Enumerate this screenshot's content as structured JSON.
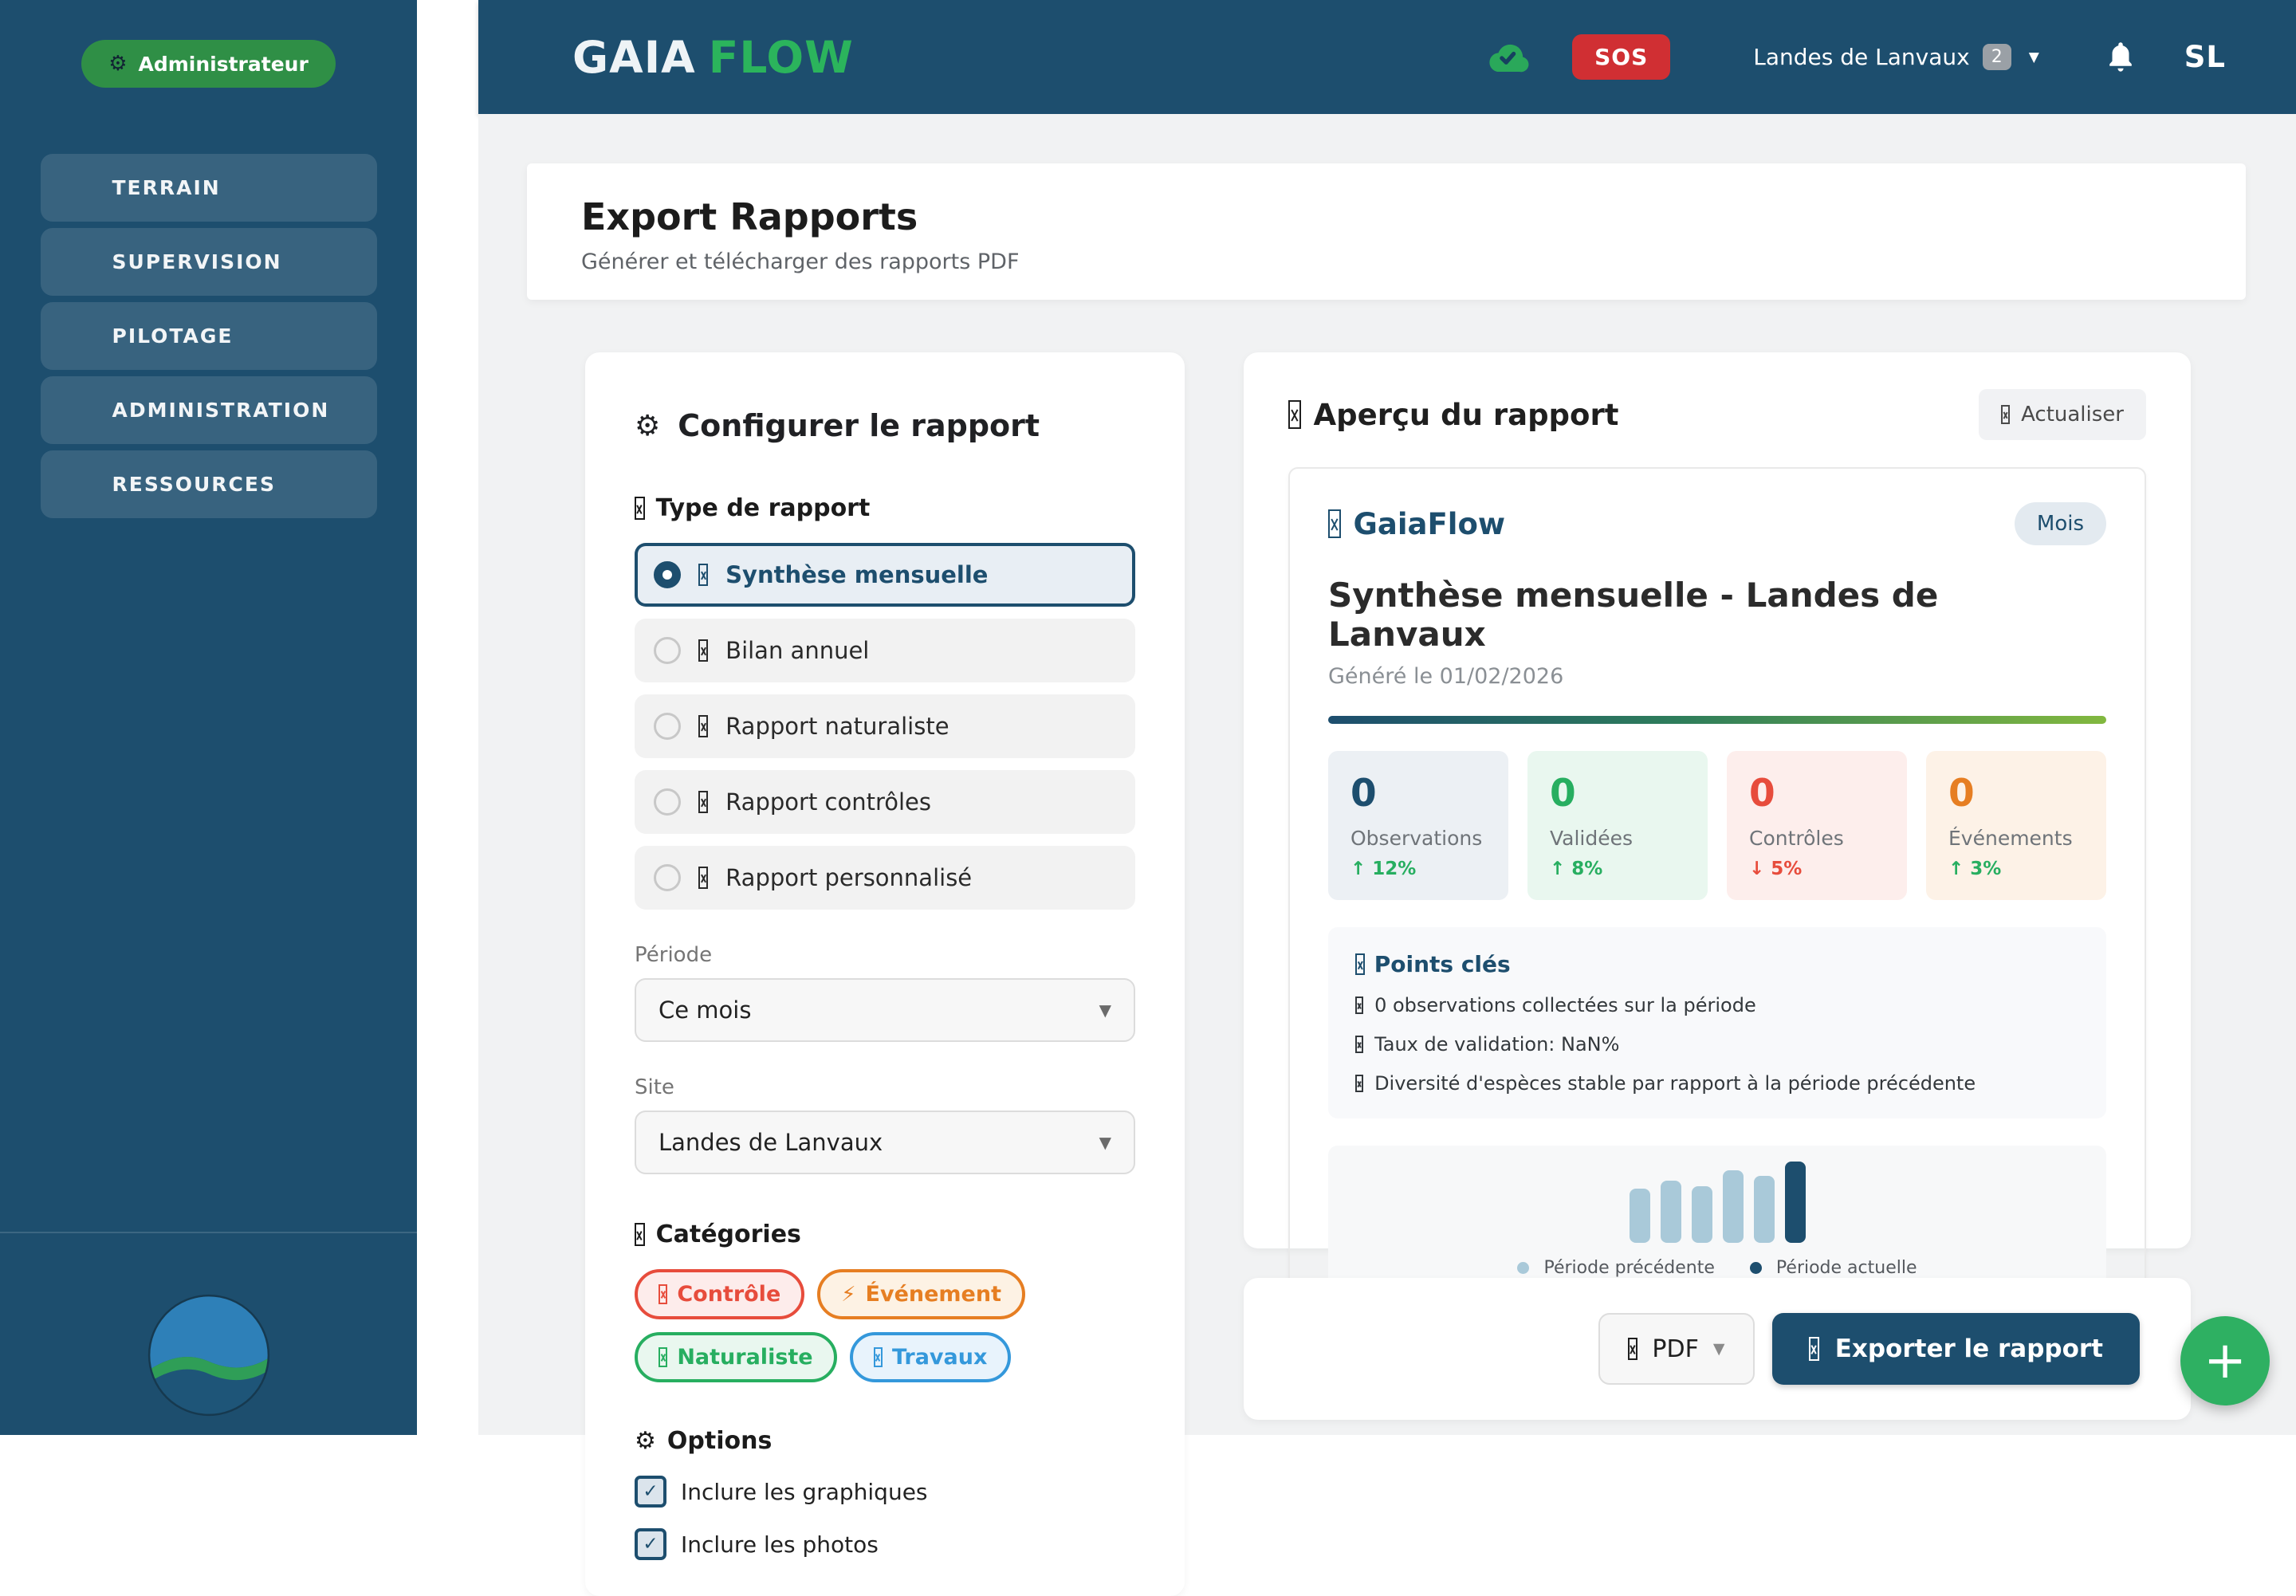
{
  "icons": {
    "gear": "⚙",
    "bolt": "⚡",
    "caret": "▼",
    "check": "✓",
    "plus": "+"
  },
  "sidebar": {
    "role_badge": "Administrateur",
    "items": [
      "TERRAIN",
      "SUPERVISION",
      "PILOTAGE",
      "ADMINISTRATION",
      "RESSOURCES"
    ]
  },
  "header": {
    "brand_primary": "GAIA",
    "brand_secondary": "FLOW",
    "sos_label": "SOS",
    "site_selector": {
      "label": "Landes de Lanvaux",
      "badge": "2"
    },
    "avatar_initials": "SL"
  },
  "page": {
    "title": "Export Rapports",
    "subtitle": "Générer et télécharger des rapports PDF"
  },
  "config": {
    "title": "Configurer le rapport",
    "type_label": "Type de rapport",
    "report_types": [
      {
        "label": "Synthèse mensuelle",
        "selected": true
      },
      {
        "label": "Bilan annuel",
        "selected": false
      },
      {
        "label": "Rapport naturaliste",
        "selected": false
      },
      {
        "label": "Rapport contrôles",
        "selected": false
      },
      {
        "label": "Rapport personnalisé",
        "selected": false
      }
    ],
    "periode_label": "Période",
    "periode_value": "Ce mois",
    "site_label": "Site",
    "site_value": "Landes de Lanvaux",
    "categories_label": "Catégories",
    "categories": [
      {
        "label": "Contrôle",
        "color": "#e74c3c"
      },
      {
        "label": "Événement",
        "color": "#e67e22"
      },
      {
        "label": "Naturaliste",
        "color": "#27ae60"
      },
      {
        "label": "Travaux",
        "color": "#3498db"
      }
    ],
    "options_label": "Options",
    "checkboxes": [
      {
        "label": "Inclure les graphiques",
        "checked": true
      },
      {
        "label": "Inclure les photos",
        "checked": true
      }
    ]
  },
  "preview": {
    "title": "Aperçu du rapport",
    "refresh_label": "Actualiser",
    "report": {
      "brand": "GaiaFlow",
      "badge": "Mois",
      "title": "Synthèse mensuelle - Landes de Lanvaux",
      "generated": "Généré le 01/02/2026",
      "stats": [
        {
          "value": "0",
          "label": "Observations",
          "trend": "↑ 12%",
          "trend_dir": "up"
        },
        {
          "value": "0",
          "label": "Validées",
          "trend": "↑ 8%",
          "trend_dir": "up"
        },
        {
          "value": "0",
          "label": "Contrôles",
          "trend": "↓ 5%",
          "trend_dir": "down"
        },
        {
          "value": "0",
          "label": "Événements",
          "trend": "↑ 3%",
          "trend_dir": "up"
        }
      ],
      "keypoints_title": "Points clés",
      "keypoints": [
        "0 observations collectées sur la période",
        "Taux de validation: NaN%",
        "Diversité d'espèces stable par rapport à la période précédente"
      ]
    },
    "chart_data": {
      "type": "bar",
      "title": "",
      "legend": [
        "Période précédente",
        "Période actuelle"
      ],
      "legend_position": "bottom",
      "axes_visible": false,
      "bars": [
        {
          "series": "Période précédente",
          "value": 68
        },
        {
          "series": "Période précédente",
          "value": 78
        },
        {
          "series": "Période précédente",
          "value": 71
        },
        {
          "series": "Période précédente",
          "value": 91
        },
        {
          "series": "Période précédente",
          "value": 84
        },
        {
          "series": "Période actuelle",
          "value": 102
        }
      ],
      "colors": {
        "Période précédente": "#a9c9d9",
        "Période actuelle": "#1d4e6e"
      }
    }
  },
  "export": {
    "format_value": "PDF",
    "button_label": "Exporter le rapport"
  },
  "fab": {
    "label": "+"
  }
}
